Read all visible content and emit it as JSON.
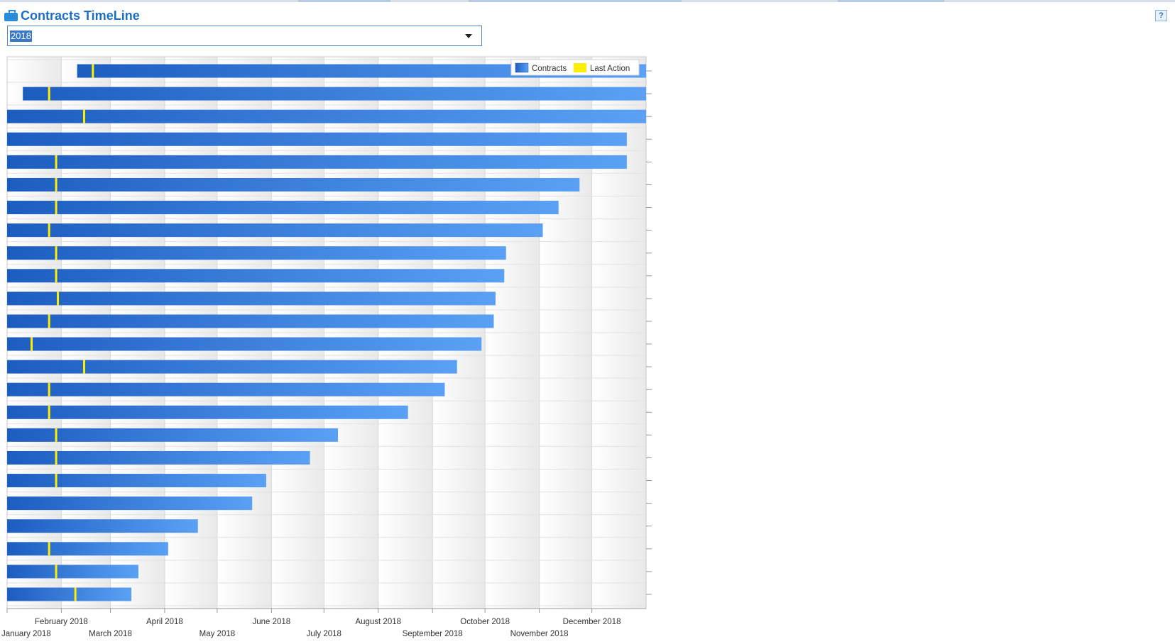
{
  "header": {
    "title": "Contracts TimeLine",
    "help_label": "?"
  },
  "year_select": {
    "value": "2018"
  },
  "icons": {
    "title": "briefcase-icon",
    "help": "help-icon",
    "dropdown": "chevron-down-icon"
  },
  "colors": {
    "title": "#1d6fc3",
    "bar_dark": "#1c5dc0",
    "bar_light": "#5aa1f5",
    "last_action": "#ffee00",
    "band": "#efefef"
  },
  "chart_data": {
    "type": "timeline",
    "legend": {
      "placement": "top-right",
      "entries": [
        "Contracts",
        "Last Action"
      ]
    },
    "x_axis": {
      "range": [
        "2018-01-01",
        "2018-12-31"
      ],
      "ticks": [
        "January 2018",
        "February 2018",
        "March 2018",
        "April 2018",
        "May 2018",
        "June 2018",
        "July 2018",
        "August 2018",
        "September 2018",
        "October 2018",
        "November 2018",
        "December 2018"
      ]
    },
    "grid": true,
    "bars": [
      {
        "start": "2018-02-10",
        "end": "2018-12-31",
        "last_action": "2018-02-19"
      },
      {
        "start": "2018-01-10",
        "end": "2018-12-31",
        "last_action": "2018-01-25"
      },
      {
        "start": "2018-01-01",
        "end": "2018-12-31",
        "last_action": "2018-02-14"
      },
      {
        "start": "2018-01-01",
        "end": "2018-12-20",
        "last_action": null
      },
      {
        "start": "2018-01-01",
        "end": "2018-12-20",
        "last_action": "2018-01-29"
      },
      {
        "start": "2018-01-01",
        "end": "2018-11-23",
        "last_action": "2018-01-29"
      },
      {
        "start": "2018-01-01",
        "end": "2018-11-11",
        "last_action": "2018-01-29"
      },
      {
        "start": "2018-01-01",
        "end": "2018-11-02",
        "last_action": "2018-01-25"
      },
      {
        "start": "2018-01-01",
        "end": "2018-10-12",
        "last_action": "2018-01-29"
      },
      {
        "start": "2018-01-01",
        "end": "2018-10-11",
        "last_action": "2018-01-29"
      },
      {
        "start": "2018-01-01",
        "end": "2018-10-06",
        "last_action": "2018-01-30"
      },
      {
        "start": "2018-01-01",
        "end": "2018-10-05",
        "last_action": "2018-01-25"
      },
      {
        "start": "2018-01-01",
        "end": "2018-09-28",
        "last_action": "2018-01-15"
      },
      {
        "start": "2018-01-01",
        "end": "2018-09-14",
        "last_action": "2018-02-14"
      },
      {
        "start": "2018-01-01",
        "end": "2018-09-07",
        "last_action": "2018-01-25"
      },
      {
        "start": "2018-01-01",
        "end": "2018-08-17",
        "last_action": "2018-01-25"
      },
      {
        "start": "2018-01-01",
        "end": "2018-07-08",
        "last_action": "2018-01-29"
      },
      {
        "start": "2018-01-01",
        "end": "2018-06-22",
        "last_action": "2018-01-29"
      },
      {
        "start": "2018-01-01",
        "end": "2018-05-28",
        "last_action": "2018-01-29"
      },
      {
        "start": "2018-01-01",
        "end": "2018-05-20",
        "last_action": null
      },
      {
        "start": "2018-01-01",
        "end": "2018-04-19",
        "last_action": null
      },
      {
        "start": "2018-01-01",
        "end": "2018-04-02",
        "last_action": "2018-01-25"
      },
      {
        "start": "2018-01-01",
        "end": "2018-03-16",
        "last_action": "2018-01-29"
      },
      {
        "start": "2018-01-01",
        "end": "2018-03-12",
        "last_action": "2018-02-09"
      }
    ]
  }
}
